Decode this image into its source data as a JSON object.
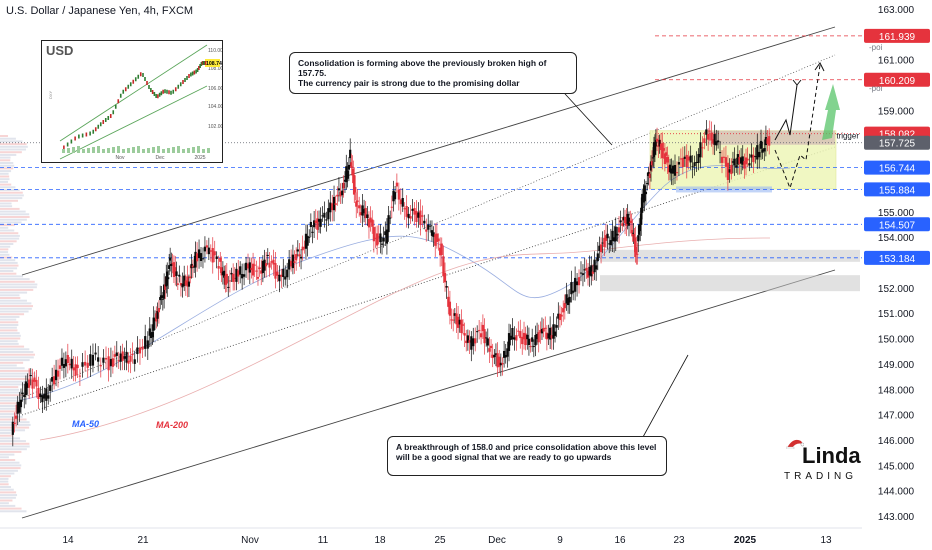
{
  "title": "U.S. Dollar / Japanese Yen, 4h, FXCM",
  "chart_data": {
    "type": "line",
    "title": "U.S. Dollar / Japanese Yen, 4h, FXCM",
    "x_ticks": [
      "14",
      "21",
      "Nov",
      "11",
      "18",
      "25",
      "Dec",
      "9",
      "16",
      "23",
      "2025",
      "13"
    ],
    "y_ticks": [
      163.0,
      162.0,
      161.0,
      160.0,
      159.0,
      158.0,
      157.0,
      156.0,
      155.0,
      154.0,
      153.0,
      152.0,
      151.0,
      150.0,
      149.0,
      148.0,
      147.0,
      146.0,
      145.0,
      144.0,
      143.0
    ],
    "y_tick_labels": [
      "163.000",
      "162.000",
      "161.000",
      "160.000",
      "159.000",
      "158.000",
      "157.000",
      "156.000",
      "155.000",
      "154.000",
      "153.000",
      "152.000",
      "151.000",
      "150.000",
      "149.000",
      "148.000",
      "147.000",
      "146.000",
      "145.000",
      "144.000",
      "143.000"
    ],
    "ylim": [
      142.5,
      163.3
    ],
    "price_path": [
      [
        0,
        146.2
      ],
      [
        0.5,
        147.8
      ],
      [
        1,
        148.4
      ],
      [
        1.6,
        147.6
      ],
      [
        2.2,
        148.4
      ],
      [
        2.8,
        149.3
      ],
      [
        3.4,
        148.6
      ],
      [
        4.2,
        149.3
      ],
      [
        5,
        149.0
      ],
      [
        5.6,
        149.4
      ],
      [
        6.2,
        149.1
      ],
      [
        7.0,
        150.0
      ],
      [
        7.4,
        150.9
      ],
      [
        7.8,
        152.0
      ],
      [
        8.1,
        153.0
      ],
      [
        8.5,
        152.3
      ],
      [
        9.0,
        152.2
      ],
      [
        9.4,
        153.2
      ],
      [
        10.0,
        153.5
      ],
      [
        10.6,
        153.0
      ],
      [
        11.0,
        152.2
      ],
      [
        11.5,
        152.5
      ],
      [
        12.1,
        152.8
      ],
      [
        12.6,
        152.6
      ],
      [
        13.1,
        153.2
      ],
      [
        13.7,
        152.3
      ],
      [
        14.3,
        153.0
      ],
      [
        14.8,
        153.4
      ],
      [
        15.3,
        154.4
      ],
      [
        15.8,
        154.6
      ],
      [
        16.4,
        155.3
      ],
      [
        16.9,
        155.9
      ],
      [
        17.3,
        157.2
      ],
      [
        17.6,
        155.2
      ],
      [
        18.1,
        155.0
      ],
      [
        18.6,
        153.9
      ],
      [
        19.1,
        154.0
      ],
      [
        19.6,
        155.9
      ],
      [
        20.2,
        155.0
      ],
      [
        20.8,
        154.8
      ],
      [
        21.4,
        154.3
      ],
      [
        21.9,
        153.5
      ],
      [
        22.4,
        151.0
      ],
      [
        22.9,
        150.5
      ],
      [
        23.4,
        149.8
      ],
      [
        24.0,
        150.3
      ],
      [
        24.5,
        149.6
      ],
      [
        25.0,
        148.8
      ],
      [
        25.5,
        150.2
      ],
      [
        26.1,
        150.0
      ],
      [
        26.6,
        149.9
      ],
      [
        27.1,
        150.2
      ],
      [
        27.6,
        150.2
      ],
      [
        28.1,
        151.0
      ],
      [
        28.6,
        152.0
      ],
      [
        29.2,
        152.5
      ],
      [
        29.7,
        152.8
      ],
      [
        30.2,
        153.8
      ],
      [
        30.7,
        154.0
      ],
      [
        31.2,
        154.5
      ],
      [
        31.6,
        154.8
      ],
      [
        31.9,
        153.2
      ],
      [
        32.2,
        155.5
      ],
      [
        32.6,
        156.5
      ],
      [
        32.9,
        158.0
      ],
      [
        33.3,
        157.2
      ],
      [
        33.7,
        156.6
      ],
      [
        34.3,
        157.0
      ],
      [
        34.9,
        157.0
      ],
      [
        35.5,
        158.0
      ],
      [
        36.0,
        157.8
      ],
      [
        36.6,
        156.5
      ],
      [
        37.1,
        157.2
      ],
      [
        37.6,
        156.8
      ],
      [
        38.2,
        157.5
      ],
      [
        38.7,
        157.8
      ]
    ],
    "price_x_range": [
      0,
      42
    ],
    "horizontal_levels": [
      {
        "value": 161.939,
        "label": "161.939",
        "color": "#e5333d",
        "style": "dashed"
      },
      {
        "value": 160.209,
        "label": "160.209",
        "color": "#e5333d",
        "style": "dashed"
      },
      {
        "value": 158.082,
        "label": "158.082",
        "color": "#e5333d",
        "style": "dotted"
      },
      {
        "value": 157.725,
        "label": "157.725",
        "color": "#5d606b",
        "style": "dotted"
      },
      {
        "value": 156.744,
        "label": "156.744",
        "color": "#2962ff",
        "style": "dashed"
      },
      {
        "value": 155.884,
        "label": "155.884",
        "color": "#2962ff",
        "style": "dashed"
      },
      {
        "value": 154.507,
        "label": "154.507",
        "color": "#2962ff",
        "style": "dashed"
      },
      {
        "value": 153.184,
        "label": "153.184",
        "color": "#2962ff",
        "style": "dashed"
      }
    ],
    "level_tags": {
      "poi_1": "-poi",
      "poi_2": "-poi",
      "trigger": "trigger"
    },
    "moving_averages": [
      {
        "name": "MA-50",
        "color": "#2962ff"
      },
      {
        "name": "MA-200",
        "color": "#e5333d"
      }
    ],
    "annotations": {
      "top": "Consolidation is forming above the previously broken high of 157.75.\nThe currency pair is strong due to the promising dollar",
      "bottom": "A breakthrough of 158.0 and price consolidation above this level\nwill be a good signal that we are ready to go upwards"
    }
  },
  "inset": {
    "label": "USD",
    "y_ticks": [
      "110.00",
      "108.00",
      "106.00",
      "104.00",
      "102.00"
    ],
    "price_tag": "108.74",
    "x_ticks": [
      "Nov",
      "Dec",
      "2025"
    ],
    "side_label": "DXY"
  },
  "logo": {
    "name": "Linda",
    "sub": "TRADING"
  },
  "colors": {
    "up": "#26a69a",
    "down": "#ef5350",
    "candle_up": "#0b0b0b",
    "candle_down": "#e5333d",
    "channel": "#444444",
    "box_fill": "#eef6b8",
    "arrow_green": "#58c46a"
  }
}
